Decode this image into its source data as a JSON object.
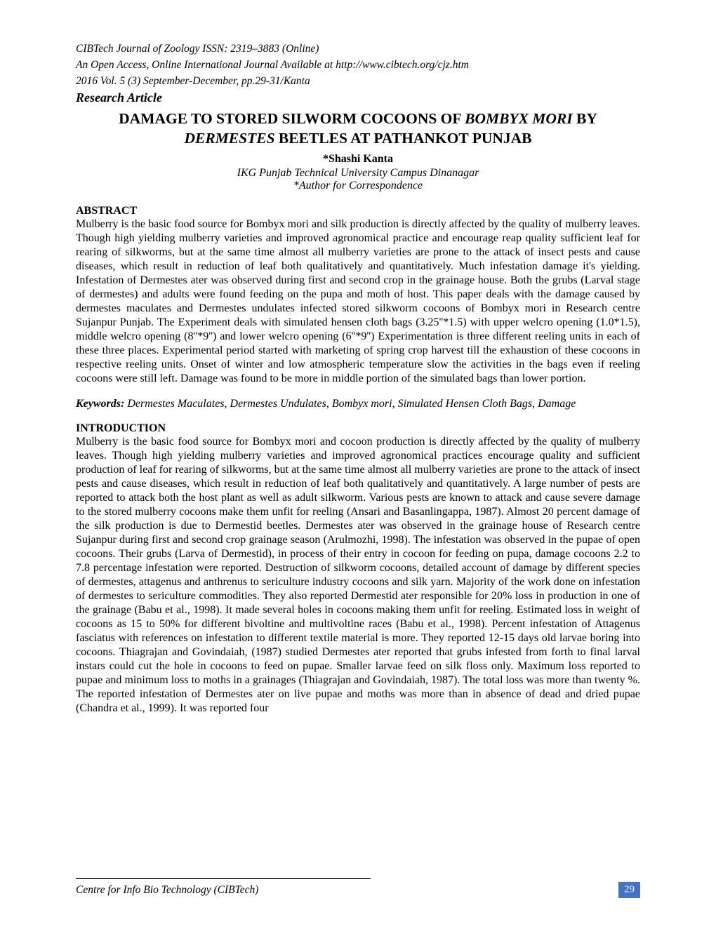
{
  "header": {
    "journal_line1": "CIBTech Journal of Zoology ISSN: 2319–3883 (Online)",
    "journal_line2": "An Open Access, Online International Journal Available at http://www.cibtech.org/cjz.htm",
    "journal_line3": "2016 Vol. 5 (3) September-December, pp.29-31/Kanta",
    "article_type": "Research Article"
  },
  "title": {
    "line1_pre": "DAMAGE TO STORED SILWORM COCOONS OF ",
    "line1_italic": "BOMBYX MORI",
    "line1_post": " BY",
    "line2_italic": "DERMESTES",
    "line2_post": " BEETLES AT PATHANKOT PUNJAB"
  },
  "author": "*Shashi Kanta",
  "affiliation": "IKG Punjab Technical University Campus Dinanagar",
  "correspondence": "*Author for Correspondence",
  "abstract": {
    "heading": "ABSTRACT",
    "text": "Mulberry is the basic food source for Bombyx mori and silk production is directly affected by the quality of mulberry leaves. Though high yielding mulberry varieties and improved agronomical practice and encourage reap quality sufficient leaf for rearing of silkworms, but at the same time almost all mulberry varieties are prone to the attack of insect pests and cause diseases, which result in reduction of leaf both qualitatively and quantitatively. Much infestation damage it's yielding. Infestation of Dermestes ater was observed during first and second crop in the grainage house. Both the grubs (Larval stage of dermestes) and adults were found feeding on the pupa and moth of host. This paper deals with the damage caused by dermestes maculates and Dermestes undulates infected stored silkworm cocoons of Bombyx mori in Research centre Sujanpur Punjab. The Experiment deals with  simulated hensen cloth bags (3.25''*1.5) with upper welcro opening (1.0*1.5), middle welcro opening (8''*9'') and lower welcro opening (6''*9'') Experimentation is three different reeling units in each of these three places. Experimental period started with marketing of spring crop harvest till the exhaustion of these cocoons in respective reeling units. Onset of winter and low atmospheric temperature slow the activities in the bags even if reeling cocoons were still left. Damage was found to be more in middle portion of the simulated bags than lower portion."
  },
  "keywords": {
    "label": "Keywords:",
    "text": " Dermestes Maculates, Dermestes Undulates, Bombyx mori, Simulated Hensen Cloth Bags, Damage"
  },
  "introduction": {
    "heading": "INTRODUCTION",
    "text": "Mulberry is the basic food source for Bombyx mori and cocoon production is directly affected by the quality of mulberry leaves. Though high yielding mulberry varieties and improved agronomical practices encourage quality and sufficient production of leaf for rearing of silkworms, but at the same time almost all mulberry varieties are prone to the attack of insect pests and cause diseases, which result in reduction of leaf both qualitatively and quantitatively. A large number of pests are reported to attack both the host plant as well as adult silkworm. Various pests are known to attack and cause severe damage to the stored mulberry cocoons make them unfit for reeling (Ansari and Basanlingappa, 1987). Almost 20 percent damage of the silk production is due to Dermestid beetles. Dermestes ater was observed in the grainage house of Research centre Sujanpur during first and second crop grainage season (Arulmozhi, 1998). The infestation was observed in the pupae of open cocoons. Their grubs (Larva of Dermestid), in process of their entry in cocoon for feeding on pupa, damage cocoons 2.2 to 7.8 percentage infestation were reported. Destruction of silkworm cocoons, detailed account of damage by different species of dermestes, attagenus and anthrenus to sericulture industry cocoons and silk yarn. Majority of the work done on infestation of dermestes to sericulture commodities. They also reported Dermestid ater responsible for 20% loss in production in one of the grainage (Babu et al., 1998). It made several holes in cocoons making them unfit for reeling. Estimated loss in weight of cocoons as 15 to 50% for different bivoltine and multivoltine races (Babu et al., 1998). Percent infestation of Attagenus fasciatus with references on infestation to different textile material is more. They reported 12-15 days old larvae boring into cocoons. Thiagrajan and Govindaiah, (1987) studied Dermestes ater reported that grubs infested from forth to final larval instars could cut the hole in cocoons to feed on pupae. Smaller larvae feed on silk floss only. Maximum loss reported to pupae and minimum loss to moths in a grainages (Thiagrajan and Govindaiah, 1987). The total loss was more than twenty %. The reported infestation of Dermestes  ater on live pupae and moths was more than in absence of dead and dried pupae (Chandra et al., 1999). It was reported four"
  },
  "footer": {
    "text": "Centre for Info Bio Technology (CIBTech)",
    "page_number": "29"
  },
  "colors": {
    "page_number_bg": "#4472c4",
    "page_number_fg": "#ffffff",
    "text": "#000000",
    "background": "#ffffff"
  }
}
